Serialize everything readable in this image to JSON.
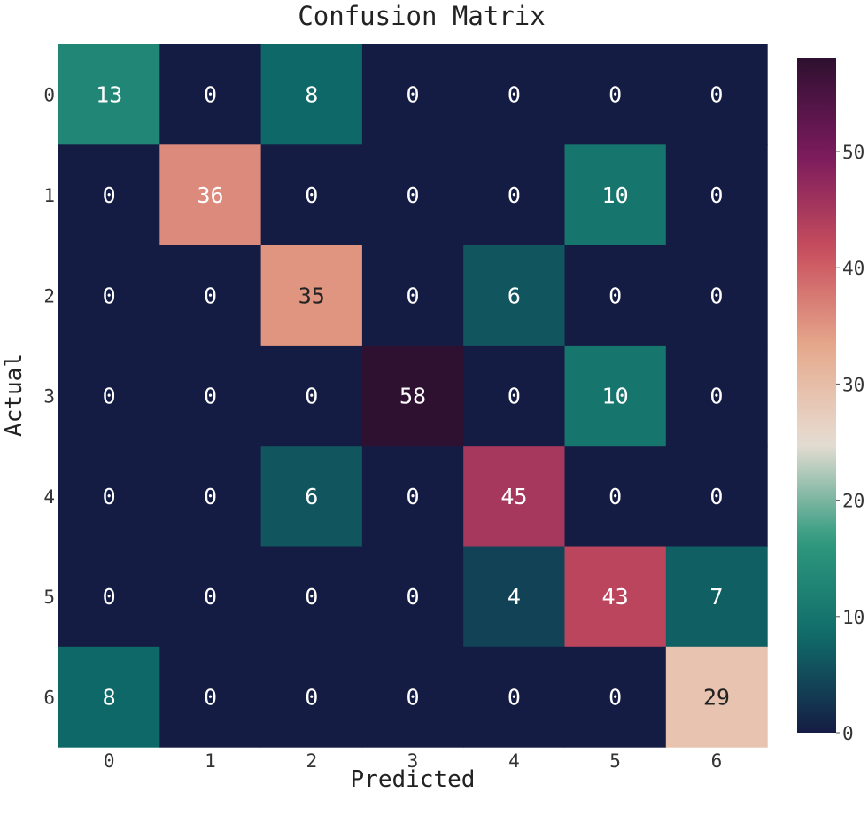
{
  "chart_data": {
    "type": "heatmap",
    "title": "Confusion Matrix",
    "xlabel": "Predicted",
    "ylabel": "Actual",
    "x_categories": [
      "0",
      "1",
      "2",
      "3",
      "4",
      "5",
      "6"
    ],
    "y_categories": [
      "0",
      "1",
      "2",
      "3",
      "4",
      "5",
      "6"
    ],
    "values": [
      [
        13,
        0,
        8,
        0,
        0,
        0,
        0
      ],
      [
        0,
        36,
        0,
        0,
        0,
        10,
        0
      ],
      [
        0,
        0,
        35,
        0,
        6,
        0,
        0
      ],
      [
        0,
        0,
        0,
        58,
        0,
        10,
        0
      ],
      [
        0,
        0,
        6,
        0,
        45,
        0,
        0
      ],
      [
        0,
        0,
        0,
        0,
        4,
        43,
        7
      ],
      [
        8,
        0,
        0,
        0,
        0,
        0,
        29
      ]
    ],
    "colorbar": {
      "range": [
        0,
        58
      ],
      "ticks": [
        0,
        10,
        20,
        30,
        40,
        50
      ],
      "colormap": [
        "#151c44",
        "#0f6b69",
        "#2f9a7e",
        "#e7ddd3",
        "#e6a98c",
        "#c94f5d",
        "#7a1a5d",
        "#2e1030"
      ]
    },
    "annotation_dark_text_above": 28,
    "annotation_colors": {
      "light": "#ffffff",
      "dark": "#222222"
    }
  }
}
